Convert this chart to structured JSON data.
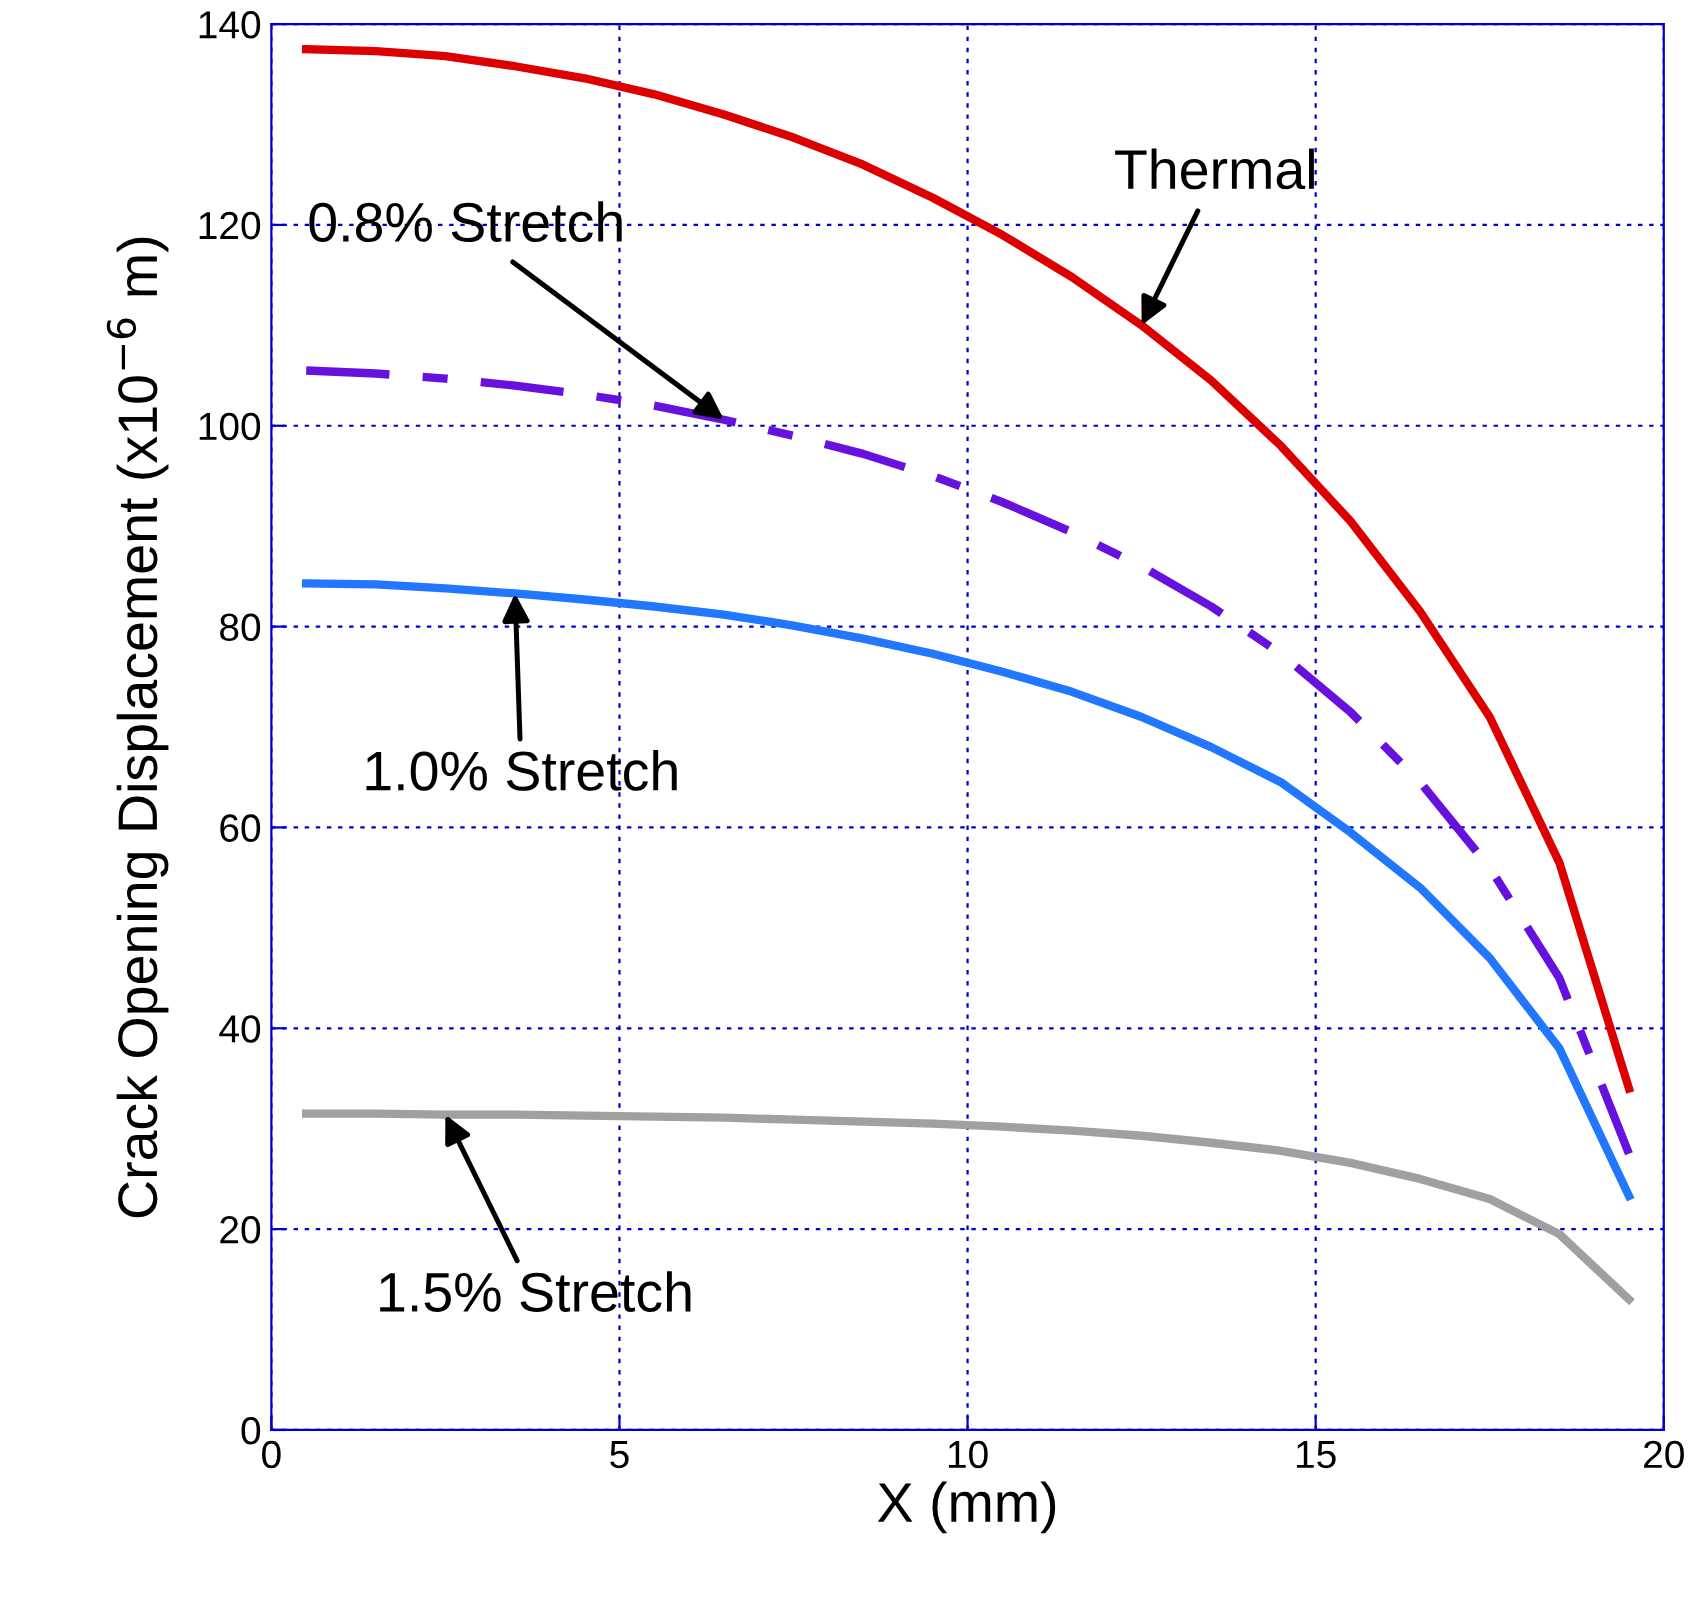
{
  "chart_data": {
    "type": "line",
    "xlabel": "X (mm)",
    "ylabel": "Crack Opening Displacement (x10$^{−6}$ m)",
    "x": [
      0.5,
      1.5,
      2.5,
      3.5,
      4.5,
      5.5,
      6.5,
      7.5,
      8.5,
      9.5,
      10.5,
      11.5,
      12.5,
      13.5,
      14.5,
      15.5,
      16.5,
      17.5,
      18.5,
      19.5
    ],
    "series": [
      {
        "name": "Thermal",
        "color": "#dd0000",
        "line_style": "solid",
        "values": [
          137.5,
          137.3,
          136.8,
          135.8,
          134.6,
          133,
          131,
          128.7,
          126,
          122.7,
          119,
          114.8,
          110,
          104.5,
          98,
          90.5,
          81.5,
          71,
          56.5,
          34
        ]
      },
      {
        "name": "0.8% Stretch",
        "color": "#6611dd",
        "line_style": "dashed",
        "values": [
          105.5,
          105.2,
          104.7,
          104,
          103.1,
          102,
          100.6,
          99,
          97.2,
          95,
          92.4,
          89.4,
          86,
          82,
          77.3,
          71.5,
          64.5,
          56,
          45,
          27.5
        ]
      },
      {
        "name": "1.0% Stretch",
        "color": "#2277ff",
        "line_style": "solid",
        "values": [
          84.3,
          84.2,
          83.8,
          83.3,
          82.7,
          82,
          81.2,
          80.1,
          78.8,
          77.3,
          75.5,
          73.5,
          71,
          68,
          64.5,
          59.5,
          54,
          47,
          38,
          23.3
        ]
      },
      {
        "name": "1.5% Stretch",
        "color": "#a0a0a0",
        "line_style": "solid",
        "values": [
          31.5,
          31.5,
          31.4,
          31.4,
          31.3,
          31.2,
          31.1,
          30.9,
          30.7,
          30.5,
          30.2,
          29.8,
          29.3,
          28.6,
          27.8,
          26.6,
          25,
          23,
          19.5,
          13
        ]
      }
    ],
    "xlim": [
      0,
      20
    ],
    "ylim": [
      0,
      140
    ],
    "xticks": [
      0,
      5,
      10,
      15,
      20
    ],
    "yticks": [
      0,
      20,
      40,
      60,
      80,
      100,
      120,
      140
    ],
    "grid": true,
    "legend": false,
    "marker": "none"
  }
}
